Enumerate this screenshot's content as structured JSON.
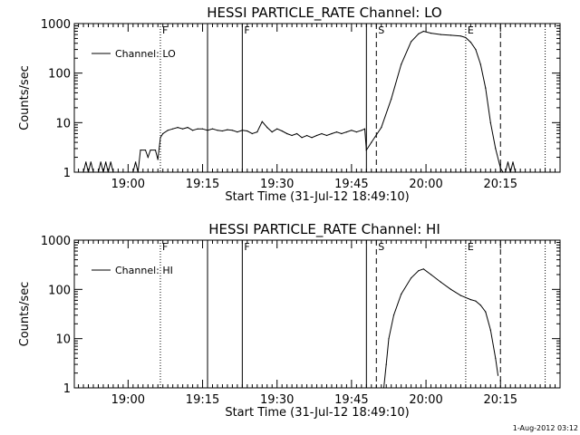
{
  "footer_timestamp": "1-Aug-2012 03:12",
  "chart_data": [
    {
      "type": "line",
      "title": "HESSI PARTICLE_RATE Channel: LO",
      "xlabel": "Start Time (31-Jul-12 18:49:10)",
      "ylabel": "Counts/sec",
      "yscale": "log",
      "ylim": [
        1,
        1000
      ],
      "xlim": [
        "18:49:10",
        "20:27:00"
      ],
      "x_ticks": [
        "19:00",
        "19:15",
        "19:30",
        "19:45",
        "20:00",
        "20:15"
      ],
      "y_ticks": [
        "1",
        "10",
        "100",
        "1000"
      ],
      "legend": {
        "position": "upper-left",
        "entries": [
          "Channel: LO"
        ]
      },
      "markers": [
        {
          "time": "19:06:30",
          "style": "dotted",
          "label": "F"
        },
        {
          "time": "19:16:00",
          "style": "solid",
          "label": ""
        },
        {
          "time": "19:23:00",
          "style": "solid",
          "label": "F"
        },
        {
          "time": "19:48:00",
          "style": "solid",
          "label": ""
        },
        {
          "time": "19:50:00",
          "style": "dashed",
          "label": "S"
        },
        {
          "time": "20:08:00",
          "style": "dotted",
          "label": "E"
        },
        {
          "time": "20:15:00",
          "style": "dashed",
          "label": ""
        },
        {
          "time": "20:24:00",
          "style": "dotted",
          "label": ""
        }
      ],
      "series": [
        {
          "name": "Channel: LO",
          "points": [
            [
              "18:51:00",
              1
            ],
            [
              "18:51:30",
              1.6
            ],
            [
              "18:52:00",
              1
            ],
            [
              "18:52:30",
              1.6
            ],
            [
              "18:53:00",
              1
            ],
            [
              "18:54:00",
              1
            ],
            [
              "18:54:30",
              1.6
            ],
            [
              "18:55:00",
              1
            ],
            [
              "18:55:30",
              1.6
            ],
            [
              "18:56:00",
              1
            ],
            [
              "18:56:30",
              1.6
            ],
            [
              "18:57:00",
              1
            ],
            [
              "18:58:00",
              1
            ],
            [
              "18:59:00",
              1
            ],
            [
              "19:00:00",
              1
            ],
            [
              "19:01:00",
              1
            ],
            [
              "19:01:30",
              1.6
            ],
            [
              "19:02:00",
              1
            ],
            [
              "19:02:30",
              2.8
            ],
            [
              "19:03:30",
              2.8
            ],
            [
              "19:04:00",
              2.0
            ],
            [
              "19:04:30",
              2.8
            ],
            [
              "19:05:30",
              2.8
            ],
            [
              "19:06:00",
              1.8
            ],
            [
              "19:06:30",
              5.0
            ],
            [
              "19:07:00",
              6.0
            ],
            [
              "19:08:00",
              7.0
            ],
            [
              "19:09:00",
              7.5
            ],
            [
              "19:10:00",
              8.0
            ],
            [
              "19:11:00",
              7.5
            ],
            [
              "19:12:00",
              8.0
            ],
            [
              "19:13:00",
              7.0
            ],
            [
              "19:14:00",
              7.5
            ],
            [
              "19:15:00",
              7.5
            ],
            [
              "19:16:00",
              7.0
            ],
            [
              "19:17:00",
              7.5
            ],
            [
              "19:18:00",
              7.0
            ],
            [
              "19:19:00",
              6.8
            ],
            [
              "19:20:00",
              7.2
            ],
            [
              "19:21:00",
              7.0
            ],
            [
              "19:22:00",
              6.5
            ],
            [
              "19:23:00",
              7.0
            ],
            [
              "19:24:00",
              6.8
            ],
            [
              "19:25:00",
              6.0
            ],
            [
              "19:26:00",
              6.5
            ],
            [
              "19:27:00",
              10.5
            ],
            [
              "19:28:00",
              8.0
            ],
            [
              "19:29:00",
              6.5
            ],
            [
              "19:30:00",
              7.5
            ],
            [
              "19:31:00",
              6.8
            ],
            [
              "19:32:00",
              6.0
            ],
            [
              "19:33:00",
              5.5
            ],
            [
              "19:34:00",
              6.0
            ],
            [
              "19:35:00",
              5.0
            ],
            [
              "19:36:00",
              5.5
            ],
            [
              "19:37:00",
              5.0
            ],
            [
              "19:38:00",
              5.5
            ],
            [
              "19:39:00",
              6.0
            ],
            [
              "19:40:00",
              5.5
            ],
            [
              "19:41:00",
              6.0
            ],
            [
              "19:42:00",
              6.5
            ],
            [
              "19:43:00",
              6.0
            ],
            [
              "19:44:00",
              6.5
            ],
            [
              "19:45:00",
              7.0
            ],
            [
              "19:46:00",
              6.5
            ],
            [
              "19:47:00",
              7.0
            ],
            [
              "19:47:40",
              7.5
            ],
            [
              "19:48:00",
              2.8
            ],
            [
              "19:49:00",
              4.0
            ],
            [
              "19:51:00",
              8.0
            ],
            [
              "19:53:00",
              30
            ],
            [
              "19:55:00",
              150
            ],
            [
              "19:57:00",
              430
            ],
            [
              "19:58:30",
              620
            ],
            [
              "19:59:30",
              700
            ],
            [
              "20:01:00",
              640
            ],
            [
              "20:03:00",
              600
            ],
            [
              "20:05:00",
              580
            ],
            [
              "20:07:00",
              560
            ],
            [
              "20:08:00",
              520
            ],
            [
              "20:09:00",
              420
            ],
            [
              "20:10:00",
              300
            ],
            [
              "20:11:00",
              150
            ],
            [
              "20:12:00",
              50
            ],
            [
              "20:13:00",
              10
            ],
            [
              "20:14:00",
              3
            ],
            [
              "20:15:00",
              1.2
            ],
            [
              "20:15:30",
              1
            ],
            [
              "20:16:00",
              1
            ],
            [
              "20:16:30",
              1.6
            ],
            [
              "20:17:00",
              1
            ],
            [
              "20:17:30",
              1.6
            ],
            [
              "20:18:00",
              1
            ]
          ]
        }
      ]
    },
    {
      "type": "line",
      "title": "HESSI PARTICLE_RATE Channel: HI",
      "xlabel": "Start Time (31-Jul-12 18:49:10)",
      "ylabel": "Counts/sec",
      "yscale": "log",
      "ylim": [
        1,
        1000
      ],
      "xlim": [
        "18:49:10",
        "20:27:00"
      ],
      "x_ticks": [
        "19:00",
        "19:15",
        "19:30",
        "19:45",
        "20:00",
        "20:15"
      ],
      "y_ticks": [
        "1",
        "10",
        "100",
        "1000"
      ],
      "legend": {
        "position": "upper-left",
        "entries": [
          "Channel: HI"
        ]
      },
      "markers": [
        {
          "time": "19:06:30",
          "style": "dotted",
          "label": "F"
        },
        {
          "time": "19:16:00",
          "style": "solid",
          "label": ""
        },
        {
          "time": "19:23:00",
          "style": "solid",
          "label": "F"
        },
        {
          "time": "19:48:00",
          "style": "solid",
          "label": ""
        },
        {
          "time": "19:50:00",
          "style": "dashed",
          "label": "S"
        },
        {
          "time": "20:08:00",
          "style": "dotted",
          "label": "E"
        },
        {
          "time": "20:15:00",
          "style": "dashed",
          "label": ""
        },
        {
          "time": "20:24:00",
          "style": "dotted",
          "label": ""
        }
      ],
      "series": [
        {
          "name": "Channel: HI",
          "points": [
            [
              "19:51:30",
              1
            ],
            [
              "19:52:00",
              3
            ],
            [
              "19:52:30",
              10
            ],
            [
              "19:53:30",
              30
            ],
            [
              "19:55:00",
              80
            ],
            [
              "19:57:00",
              170
            ],
            [
              "19:58:30",
              240
            ],
            [
              "19:59:30",
              260
            ],
            [
              "20:01:00",
              200
            ],
            [
              "20:03:00",
              140
            ],
            [
              "20:05:00",
              100
            ],
            [
              "20:07:00",
              75
            ],
            [
              "20:09:00",
              62
            ],
            [
              "20:10:00",
              58
            ],
            [
              "20:11:00",
              48
            ],
            [
              "20:12:00",
              35
            ],
            [
              "20:13:00",
              15
            ],
            [
              "20:14:00",
              4
            ],
            [
              "20:14:30",
              1.8
            ]
          ]
        }
      ]
    }
  ]
}
